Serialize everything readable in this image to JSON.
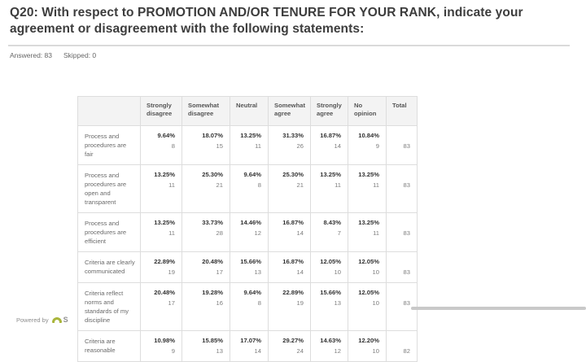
{
  "header": {
    "title": "Q20: With respect to PROMOTION AND/OR TENURE FOR YOUR RANK, indicate your agreement or disagreement with the following statements:",
    "answered": "Answered: 83",
    "skipped": "Skipped: 0"
  },
  "table": {
    "columns": [
      "Strongly disagree",
      "Somewhat disagree",
      "Neutral",
      "Somewhat agree",
      "Strongly agree",
      "No opinion",
      "Total"
    ],
    "rows": [
      {
        "label": "Process and procedures are fair",
        "cells": [
          {
            "pct": "9.64%",
            "count": "8"
          },
          {
            "pct": "18.07%",
            "count": "15"
          },
          {
            "pct": "13.25%",
            "count": "11"
          },
          {
            "pct": "31.33%",
            "count": "26"
          },
          {
            "pct": "16.87%",
            "count": "14"
          },
          {
            "pct": "10.84%",
            "count": "9"
          }
        ],
        "total": "83"
      },
      {
        "label": "Process and procedures are open and transparent",
        "cells": [
          {
            "pct": "13.25%",
            "count": "11"
          },
          {
            "pct": "25.30%",
            "count": "21"
          },
          {
            "pct": "9.64%",
            "count": "8"
          },
          {
            "pct": "25.30%",
            "count": "21"
          },
          {
            "pct": "13.25%",
            "count": "11"
          },
          {
            "pct": "13.25%",
            "count": "11"
          }
        ],
        "total": "83"
      },
      {
        "label": "Process and procedures are efficient",
        "cells": [
          {
            "pct": "13.25%",
            "count": "11"
          },
          {
            "pct": "33.73%",
            "count": "28"
          },
          {
            "pct": "14.46%",
            "count": "12"
          },
          {
            "pct": "16.87%",
            "count": "14"
          },
          {
            "pct": "8.43%",
            "count": "7"
          },
          {
            "pct": "13.25%",
            "count": "11"
          }
        ],
        "total": "83"
      },
      {
        "label": "Criteria are clearly communicated",
        "cells": [
          {
            "pct": "22.89%",
            "count": "19"
          },
          {
            "pct": "20.48%",
            "count": "17"
          },
          {
            "pct": "15.66%",
            "count": "13"
          },
          {
            "pct": "16.87%",
            "count": "14"
          },
          {
            "pct": "12.05%",
            "count": "10"
          },
          {
            "pct": "12.05%",
            "count": "10"
          }
        ],
        "total": "83"
      },
      {
        "label": "Criteria reflect norms and standards of my discipline",
        "cells": [
          {
            "pct": "20.48%",
            "count": "17"
          },
          {
            "pct": "19.28%",
            "count": "16"
          },
          {
            "pct": "9.64%",
            "count": "8"
          },
          {
            "pct": "22.89%",
            "count": "19"
          },
          {
            "pct": "15.66%",
            "count": "13"
          },
          {
            "pct": "12.05%",
            "count": "10"
          }
        ],
        "total": "83"
      },
      {
        "label": "Criteria are reasonable",
        "cells": [
          {
            "pct": "10.98%",
            "count": "9"
          },
          {
            "pct": "15.85%",
            "count": "13"
          },
          {
            "pct": "17.07%",
            "count": "14"
          },
          {
            "pct": "29.27%",
            "count": "24"
          },
          {
            "pct": "14.63%",
            "count": "12"
          },
          {
            "pct": "12.20%",
            "count": "10"
          }
        ],
        "total": "82"
      }
    ]
  },
  "footer": {
    "powered_by": "Powered by",
    "logo_letter": "S"
  },
  "colors": {
    "title_text": "#3d3d3d",
    "table_border": "#dddddd",
    "header_bg": "#f3f3f3",
    "percent_text": "#333333",
    "count_text": "#7d7d7d",
    "logo_green": "#a9b53a",
    "divider_gray": "#dadada",
    "bottom_bar_gray": "#c9c9c9"
  }
}
